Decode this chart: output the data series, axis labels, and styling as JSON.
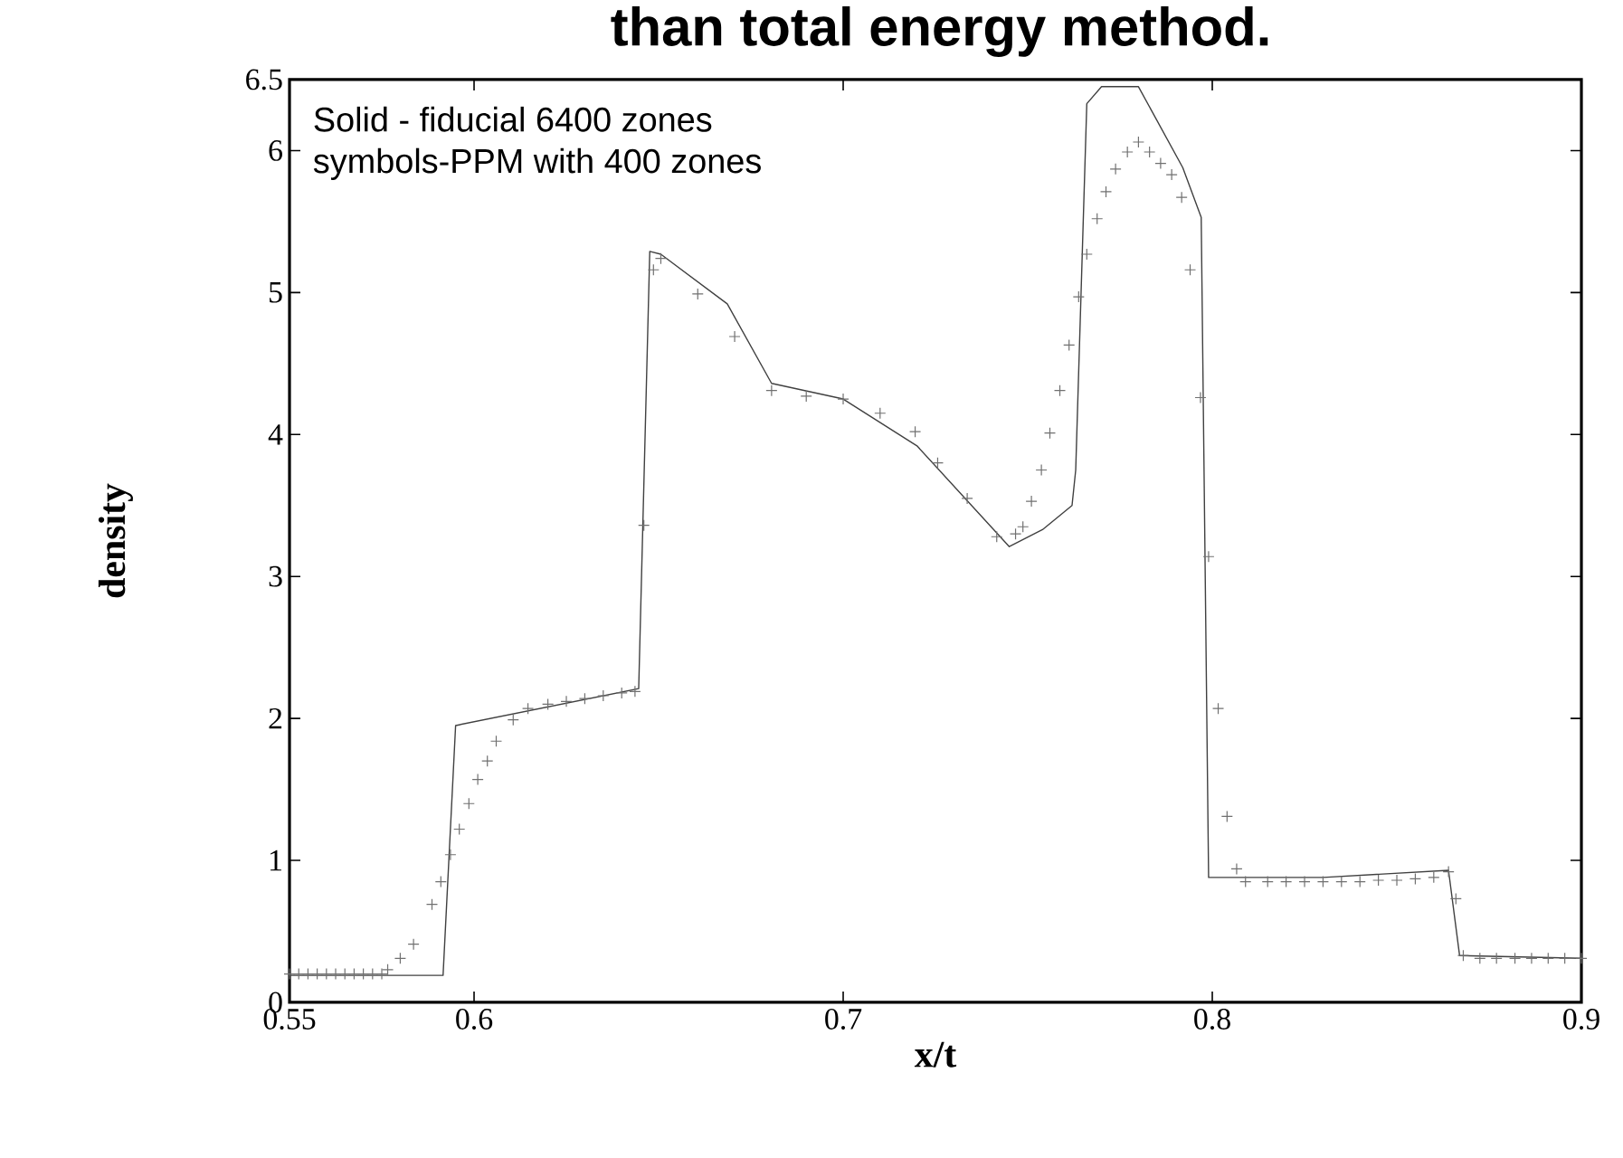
{
  "chart_data": {
    "type": "line",
    "title": "than total energy method.",
    "xlabel": "x/t",
    "ylabel": "density",
    "annotations": [
      "Solid - fiducial 6400 zones",
      "symbols-PPM with 400 zones"
    ],
    "xlim": [
      0.55,
      0.9
    ],
    "xticks": [
      0.55,
      0.6,
      0.7,
      0.8,
      0.9
    ],
    "ylim": [
      0,
      6.5
    ],
    "yticks": [
      0,
      1,
      2,
      3,
      4,
      5,
      6,
      6.5
    ],
    "grid": false,
    "series": [
      {
        "color": "#404040",
        "line_style": "solid",
        "x": [
          0.55,
          0.5916,
          0.595,
          0.6446,
          0.6476,
          0.6506,
          0.6686,
          0.6806,
          0.7,
          0.72,
          0.745,
          0.754,
          0.762,
          0.763,
          0.766,
          0.77,
          0.78,
          0.792,
          0.797,
          0.799,
          0.83,
          0.864,
          0.867,
          0.9
        ],
        "values": [
          0.19,
          0.19,
          1.95,
          2.21,
          5.29,
          5.27,
          4.92,
          4.36,
          4.25,
          3.92,
          3.21,
          3.33,
          3.5,
          3.75,
          6.33,
          6.45,
          6.45,
          5.88,
          5.53,
          0.88,
          0.88,
          0.93,
          0.33,
          0.31
        ]
      },
      {
        "type": "scatter",
        "color": "#707070",
        "marker": "cross",
        "x": [
          0.55,
          0.5525,
          0.555,
          0.5575,
          0.56,
          0.5625,
          0.565,
          0.5675,
          0.57,
          0.5725,
          0.575,
          0.5766,
          0.58,
          0.5836,
          0.5886,
          0.591,
          0.5936,
          0.596,
          0.5986,
          0.601,
          0.6036,
          0.606,
          0.6106,
          0.6146,
          0.62,
          0.625,
          0.63,
          0.635,
          0.64,
          0.6436,
          0.646,
          0.6486,
          0.6506,
          0.6606,
          0.6706,
          0.6806,
          0.69,
          0.7,
          0.71,
          0.7195,
          0.7256,
          0.7336,
          0.7416,
          0.7467,
          0.7487,
          0.751,
          0.7537,
          0.756,
          0.7587,
          0.7612,
          0.7638,
          0.766,
          0.7688,
          0.7712,
          0.7738,
          0.777,
          0.78,
          0.783,
          0.786,
          0.789,
          0.7917,
          0.794,
          0.7968,
          0.799,
          0.8016,
          0.804,
          0.8066,
          0.809,
          0.815,
          0.82,
          0.825,
          0.83,
          0.835,
          0.84,
          0.845,
          0.85,
          0.855,
          0.86,
          0.864,
          0.866,
          0.868,
          0.8725,
          0.877,
          0.882,
          0.8865,
          0.891,
          0.8955,
          0.9
        ],
        "values": [
          0.2,
          0.2,
          0.2,
          0.2,
          0.2,
          0.2,
          0.2,
          0.2,
          0.2,
          0.2,
          0.2,
          0.23,
          0.31,
          0.41,
          0.69,
          0.85,
          1.04,
          1.22,
          1.4,
          1.57,
          1.7,
          1.84,
          1.99,
          2.07,
          2.1,
          2.12,
          2.14,
          2.16,
          2.18,
          2.19,
          3.36,
          5.16,
          5.24,
          4.99,
          4.69,
          4.31,
          4.27,
          4.25,
          4.15,
          4.02,
          3.8,
          3.55,
          3.28,
          3.3,
          3.35,
          3.53,
          3.75,
          4.01,
          4.31,
          4.63,
          4.97,
          5.27,
          5.52,
          5.71,
          5.87,
          5.99,
          6.06,
          5.99,
          5.91,
          5.83,
          5.67,
          5.16,
          4.26,
          3.14,
          2.07,
          1.31,
          0.94,
          0.85,
          0.85,
          0.85,
          0.85,
          0.85,
          0.85,
          0.85,
          0.86,
          0.86,
          0.87,
          0.88,
          0.92,
          0.73,
          0.33,
          0.31,
          0.31,
          0.31,
          0.31,
          0.31,
          0.31,
          0.31
        ]
      }
    ]
  }
}
